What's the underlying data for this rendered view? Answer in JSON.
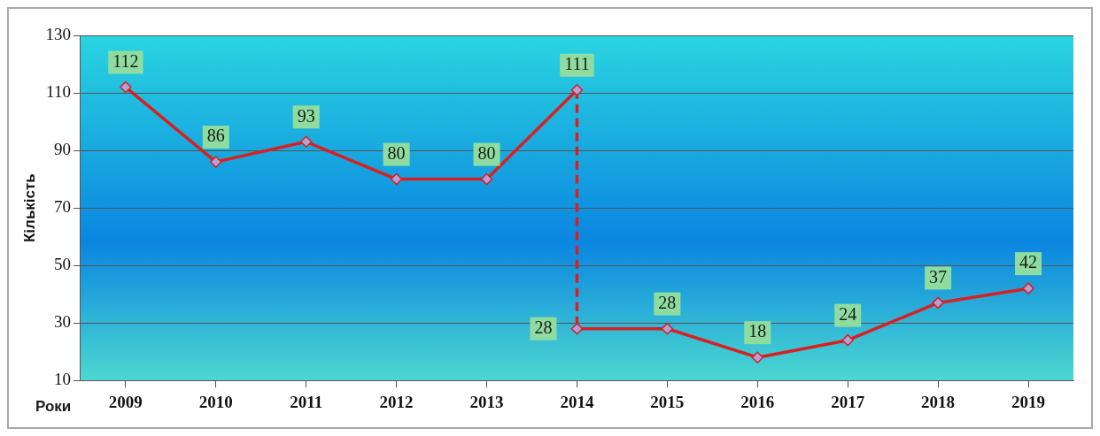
{
  "chart_data": {
    "type": "line",
    "xlabel": "Роки",
    "ylabel": "Кількість",
    "xlim": [
      2008.5,
      2019.5
    ],
    "xticks": [
      2009,
      2010,
      2011,
      2012,
      2013,
      2014,
      2015,
      2016,
      2017,
      2018,
      2019
    ],
    "ylim": [
      10,
      130
    ],
    "yticks": [
      10,
      30,
      50,
      70,
      90,
      110,
      130
    ],
    "grid": "y",
    "legend": false,
    "marker": "diamond",
    "line_style": "solid",
    "series": [
      {
        "color": "#d92020",
        "x": [
          2009,
          2010,
          2011,
          2012,
          2013,
          2014
        ],
        "values": [
          112,
          86,
          93,
          80,
          80,
          111
        ],
        "value_labels": [
          "112",
          "86",
          "93",
          "80",
          "80",
          "111"
        ]
      },
      {
        "color": "#d92020",
        "x": [
          2014,
          2015,
          2016,
          2017,
          2018,
          2019
        ],
        "values": [
          28,
          28,
          18,
          24,
          37,
          42
        ],
        "value_labels": [
          "28",
          "28",
          "18",
          "24",
          "37",
          "42"
        ]
      },
      {
        "color": "#d92020",
        "x": [
          2014,
          2014
        ],
        "values": [
          111,
          28
        ],
        "line_style": "dashed",
        "marker": "none"
      }
    ]
  }
}
